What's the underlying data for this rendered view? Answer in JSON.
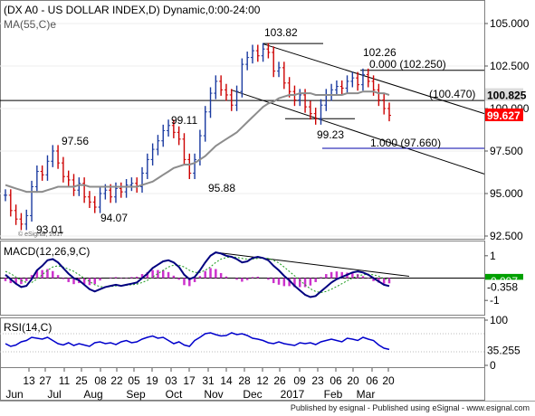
{
  "footer": "Published by esignal - Published using eSignal - www.esignal.com",
  "chart_data": [
    {
      "type": "line",
      "panel": "price",
      "title": "(DX A0 - US DOLLAR INDEX,D) Dynamic,0:00-24:00",
      "subtitle": "MA(55,C)e",
      "watermark": "© eSignal, 2017",
      "y_ticks": [
        "105.000",
        "102.500",
        "100.000",
        "97.500",
        "95.000",
        "92.500"
      ],
      "ylim": [
        92.5,
        105.0
      ],
      "x_ticks": [
        "13",
        "27",
        "11",
        "25",
        "08",
        "22",
        "05",
        "19",
        "03",
        "17",
        "31",
        "14",
        "28",
        "12",
        "26",
        "09",
        "23",
        "06",
        "20",
        "06",
        "20"
      ],
      "months": [
        "Jun",
        "Jul",
        "Aug",
        "Sep",
        "Oct",
        "Nov",
        "Dec",
        "2017",
        "Feb",
        "Mar"
      ],
      "annotations": [
        "103.82",
        "102.26",
        "97.56",
        "99.11",
        "95.88",
        "94.07",
        "93.01",
        "99.23",
        "0.000 (102.250)",
        "(100.470)",
        "1.000 (97.660)"
      ],
      "price_labels": [
        {
          "text": "100.825",
          "value": 100.825,
          "bg": "#dcdcdc",
          "fg": "#000000"
        },
        {
          "text": "99.627",
          "value": 99.627,
          "bg": "#ff0000",
          "fg": "#ffffff"
        }
      ],
      "horizontal_line": 100.47,
      "fib_levels": [
        102.25,
        97.66
      ],
      "series": [
        {
          "role": "price",
          "values": [
            94.9,
            94.0,
            93.5,
            93.2,
            93.7,
            95.4,
            96.3,
            96.1,
            96.9,
            97.5,
            96.8,
            96.0,
            95.8,
            95.2,
            95.6,
            94.8,
            94.5,
            94.2,
            95.0,
            95.2,
            94.8,
            95.3,
            95.1,
            95.5,
            95.6,
            95.4,
            96.2,
            97.0,
            97.6,
            98.1,
            98.7,
            99.0,
            98.6,
            98.2,
            97.0,
            96.2,
            97.0,
            98.4,
            99.8,
            100.9,
            101.6,
            101.1,
            100.8,
            100.2,
            101.0,
            102.6,
            103.0,
            103.4,
            103.1,
            103.5,
            103.3,
            102.2,
            102.4,
            101.5,
            101.0,
            100.5,
            100.8,
            100.1,
            99.7,
            99.4,
            100.2,
            100.8,
            101.1,
            101.3,
            101.2,
            101.6,
            101.8,
            101.4,
            102.0,
            101.6,
            101.1,
            100.5,
            100.0,
            99.6
          ]
        },
        {
          "role": "MA(55,C)e",
          "values": [
            95.5,
            95.4,
            95.3,
            95.2,
            95.1,
            95.1,
            95.1,
            95.1,
            95.2,
            95.3,
            95.4,
            95.4,
            95.4,
            95.4,
            95.5,
            95.5,
            95.4,
            95.4,
            95.4,
            95.4,
            95.4,
            95.4,
            95.4,
            95.4,
            95.4,
            95.4,
            95.5,
            95.6,
            95.7,
            95.9,
            96.1,
            96.3,
            96.5,
            96.6,
            96.7,
            96.7,
            96.8,
            97.0,
            97.2,
            97.5,
            97.8,
            98.0,
            98.2,
            98.4,
            98.6,
            98.9,
            99.2,
            99.5,
            99.8,
            100.1,
            100.3,
            100.4,
            100.6,
            100.7,
            100.8,
            100.8,
            100.9,
            100.9,
            100.9,
            100.8,
            100.8,
            100.8,
            100.8,
            100.8,
            100.8,
            100.9,
            100.9,
            100.9,
            101.0,
            101.0,
            101.0,
            100.9,
            100.9,
            100.8
          ]
        }
      ]
    },
    {
      "type": "line",
      "panel": "macd",
      "title": "MACD(12,26,9,C)",
      "y_ticks": [
        "1",
        "0",
        "-1"
      ],
      "ylim": [
        -1.6,
        1.6
      ],
      "value_labels": [
        {
          "text": "-0.097",
          "value": -0.097,
          "bg": "#00a000",
          "fg": "#ffffff"
        },
        {
          "text": "-0.358",
          "value": -0.358,
          "bg": "#ffffff",
          "fg": "#000000"
        }
      ],
      "series": [
        {
          "role": "MACD",
          "values": [
            0.15,
            -0.05,
            -0.25,
            -0.4,
            -0.35,
            -0.05,
            0.35,
            0.55,
            0.8,
            0.85,
            0.7,
            0.45,
            0.2,
            0.0,
            -0.1,
            -0.3,
            -0.5,
            -0.6,
            -0.5,
            -0.4,
            -0.35,
            -0.3,
            -0.35,
            -0.3,
            -0.25,
            -0.2,
            0.0,
            0.2,
            0.45,
            0.6,
            0.75,
            0.8,
            0.7,
            0.5,
            0.15,
            -0.05,
            0.05,
            0.35,
            0.7,
            1.0,
            1.15,
            1.1,
            1.0,
            0.95,
            0.85,
            0.7,
            0.75,
            0.9,
            0.95,
            0.9,
            0.8,
            0.55,
            0.35,
            0.1,
            -0.1,
            -0.35,
            -0.55,
            -0.75,
            -0.85,
            -0.8,
            -0.6,
            -0.4,
            -0.2,
            -0.05,
            0.05,
            0.15,
            0.25,
            0.3,
            0.25,
            0.15,
            0.0,
            -0.15,
            -0.3,
            -0.358
          ]
        },
        {
          "role": "Signal",
          "values": [
            0.3,
            0.2,
            0.05,
            -0.1,
            -0.2,
            -0.2,
            -0.05,
            0.15,
            0.35,
            0.5,
            0.55,
            0.5,
            0.4,
            0.3,
            0.15,
            0.0,
            -0.15,
            -0.3,
            -0.38,
            -0.4,
            -0.38,
            -0.35,
            -0.33,
            -0.32,
            -0.3,
            -0.27,
            -0.2,
            -0.1,
            0.05,
            0.2,
            0.35,
            0.5,
            0.58,
            0.58,
            0.5,
            0.35,
            0.25,
            0.25,
            0.35,
            0.5,
            0.7,
            0.85,
            0.92,
            0.95,
            0.93,
            0.88,
            0.85,
            0.85,
            0.88,
            0.9,
            0.88,
            0.8,
            0.68,
            0.5,
            0.3,
            0.1,
            -0.1,
            -0.3,
            -0.48,
            -0.6,
            -0.65,
            -0.6,
            -0.5,
            -0.38,
            -0.25,
            -0.12,
            0.0,
            0.1,
            0.15,
            0.17,
            0.15,
            0.08,
            -0.02,
            -0.097
          ]
        }
      ]
    },
    {
      "type": "line",
      "panel": "rsi",
      "title": "RSI(14,C)",
      "y_ticks": [
        "100",
        "0"
      ],
      "ylim": [
        0,
        100
      ],
      "value_labels": [
        {
          "text": "35.255",
          "value": 35.255,
          "bg": "#ffffff",
          "fg": "#000000"
        }
      ],
      "series": [
        {
          "role": "RSI",
          "values": [
            48,
            42,
            45,
            52,
            55,
            62,
            60,
            58,
            62,
            55,
            48,
            45,
            50,
            44,
            48,
            45,
            42,
            50,
            52,
            48,
            50,
            46,
            52,
            55,
            50,
            52,
            58,
            62,
            65,
            60,
            62,
            55,
            48,
            52,
            45,
            42,
            55,
            62,
            70,
            72,
            68,
            65,
            66,
            72,
            68,
            70,
            66,
            60,
            58,
            55,
            50,
            48,
            52,
            48,
            46,
            44,
            50,
            48,
            50,
            46,
            52,
            55,
            58,
            55,
            52,
            60,
            58,
            55,
            62,
            58,
            55,
            45,
            38,
            35.255
          ]
        }
      ]
    }
  ]
}
